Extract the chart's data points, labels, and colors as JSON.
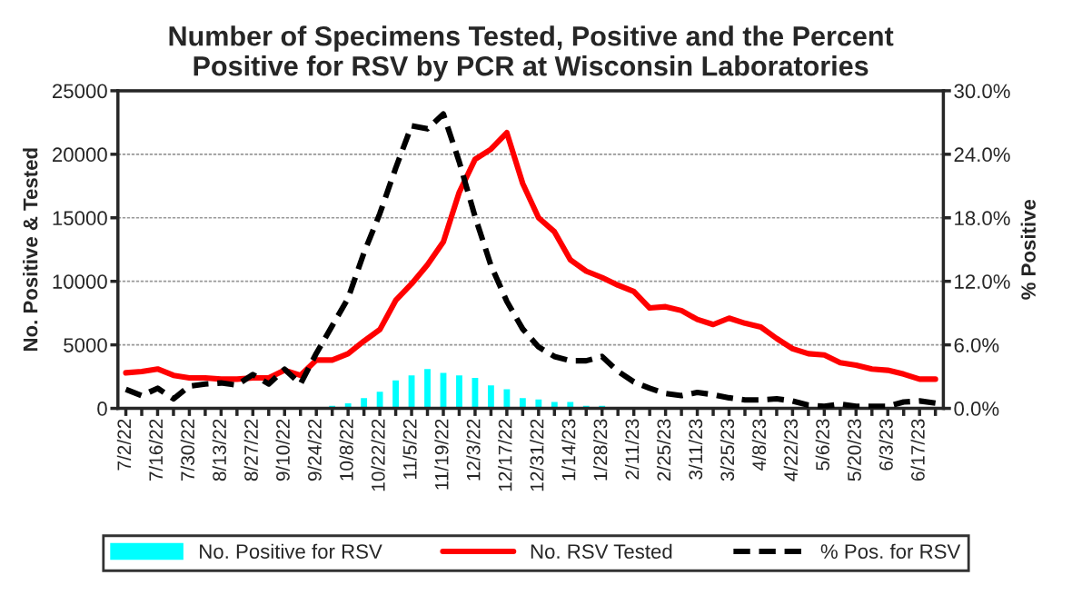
{
  "chart_data": {
    "type": "bar",
    "title": "Number of Specimens Tested, Positive and the Percent\nPositive for RSV by PCR at Wisconsin Laboratories",
    "ylabel": "No. Positive & Tested",
    "y2label": "% Positive",
    "categories": [
      "7/2/22",
      null,
      "7/16/22",
      null,
      "7/30/22",
      null,
      "8/13/22",
      null,
      "8/27/22",
      null,
      "9/10/22",
      null,
      "9/24/22",
      null,
      "10/8/22",
      null,
      "10/22/22",
      null,
      "11/5/22",
      null,
      "11/19/22",
      null,
      "12/3/22",
      null,
      "12/17/22",
      null,
      "12/31/22",
      null,
      "1/14/23",
      null,
      "1/28/23",
      null,
      "2/11/23",
      null,
      "2/25/23",
      null,
      "3/11/23",
      null,
      "3/25/23",
      null,
      "4/8/23",
      null,
      "4/22/23",
      null,
      "5/6/23",
      null,
      "5/20/23",
      null,
      "6/3/23",
      null,
      "6/17/23",
      null
    ],
    "series": [
      {
        "name": "No. Positive for RSV",
        "color": "#00ffff",
        "values": [
          100,
          100,
          100,
          100,
          100,
          100,
          100,
          100,
          100,
          100,
          100,
          100,
          200,
          300,
          500,
          900,
          1400,
          2300,
          2700,
          3200,
          2900,
          2700,
          2500,
          1900,
          1600,
          900,
          800,
          600,
          600,
          300,
          300,
          200,
          200,
          200,
          100,
          100,
          100,
          100,
          100,
          100,
          100,
          100,
          100,
          100,
          100,
          100,
          100,
          100,
          100,
          100,
          100,
          100
        ]
      },
      {
        "name": "No. RSV Tested",
        "type": "line",
        "color": "#ff0000",
        "line_style": "solid",
        "values": [
          2800,
          2900,
          3100,
          2600,
          2400,
          2400,
          2300,
          2300,
          2400,
          2400,
          3000,
          2600,
          3800,
          3800,
          4300,
          5300,
          6200,
          8500,
          9800,
          11300,
          13100,
          17000,
          19600,
          20400,
          21700,
          17700,
          15000,
          13900,
          11700,
          10800,
          10300,
          9700,
          9200,
          7900,
          8000,
          7700,
          7000,
          6600,
          7100,
          6700,
          6400,
          5500,
          4700,
          4300,
          4200,
          3600,
          3400,
          3100,
          3000,
          2700,
          2300,
          2300
        ]
      },
      {
        "name": "% Pos. for RSV",
        "type": "line",
        "axis": "y2",
        "color": "#000000",
        "line_style": "dashed",
        "values": [
          1.8,
          1.2,
          1.9,
          0.9,
          2.1,
          2.3,
          2.4,
          2.2,
          3.2,
          2.3,
          3.7,
          2.3,
          5.2,
          7.8,
          10.4,
          14.7,
          18.4,
          22.7,
          26.7,
          26.4,
          27.8,
          23.3,
          18.1,
          13.5,
          10.1,
          7.5,
          5.8,
          4.9,
          4.5,
          4.5,
          4.9,
          3.5,
          2.5,
          1.9,
          1.4,
          1.2,
          1.5,
          1.3,
          1.0,
          0.8,
          0.8,
          0.9,
          0.7,
          0.3,
          0.2,
          0.4,
          0.2,
          0.2,
          0.2,
          0.6,
          0.7,
          0.5
        ]
      }
    ],
    "ylim": [
      0,
      25000
    ],
    "yticks": [
      0,
      5000,
      10000,
      15000,
      20000,
      25000
    ],
    "y2lim": [
      0,
      30
    ],
    "y2ticks": [
      {
        "value": 0,
        "label": "0.0%"
      },
      {
        "value": 6,
        "label": "6.0%"
      },
      {
        "value": 12,
        "label": "12.0%"
      },
      {
        "value": 18,
        "label": "18.0%"
      },
      {
        "value": 24,
        "label": "24.0%"
      },
      {
        "value": 30,
        "label": "30.0%"
      }
    ],
    "grid": "y",
    "legend": "bottom",
    "marker": "none"
  }
}
